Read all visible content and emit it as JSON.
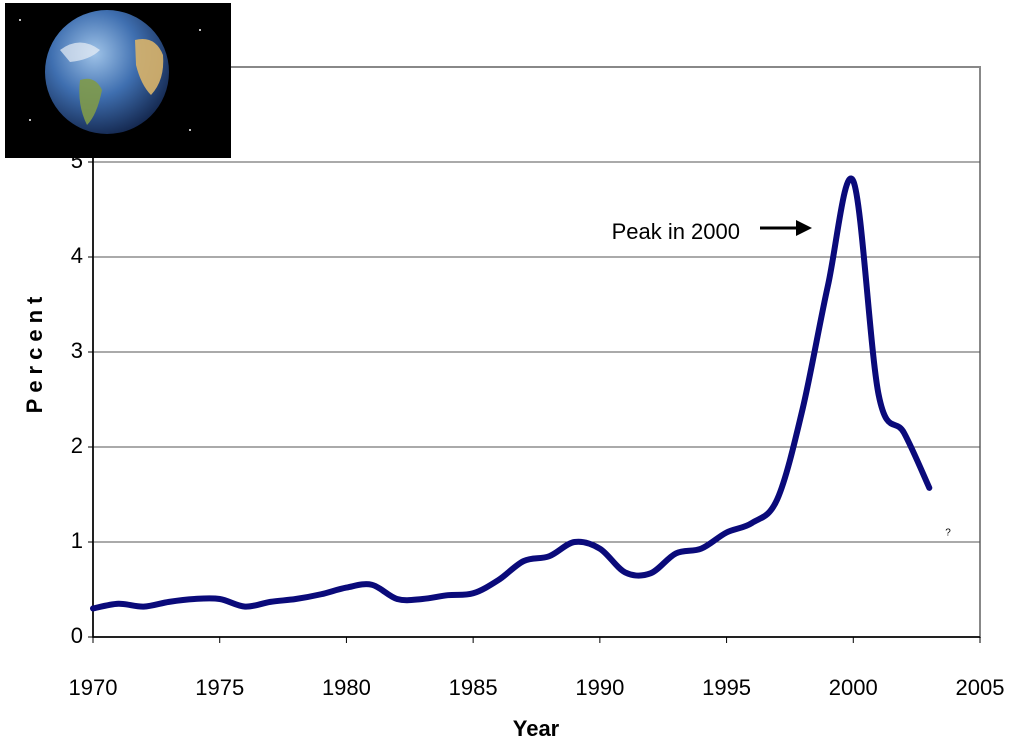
{
  "chart_data": {
    "type": "line",
    "x": [
      1970,
      1971,
      1972,
      1973,
      1974,
      1975,
      1976,
      1977,
      1978,
      1979,
      1980,
      1981,
      1982,
      1983,
      1984,
      1985,
      1986,
      1987,
      1988,
      1989,
      1990,
      1991,
      1992,
      1993,
      1994,
      1995,
      1996,
      1997,
      1998,
      1999,
      2000,
      2001,
      2002,
      2003
    ],
    "series": [
      {
        "color": "#0a0a7a",
        "values": [
          0.3,
          0.35,
          0.32,
          0.37,
          0.4,
          0.4,
          0.32,
          0.37,
          0.4,
          0.45,
          0.52,
          0.55,
          0.4,
          0.4,
          0.44,
          0.46,
          0.6,
          0.8,
          0.85,
          1.0,
          0.93,
          0.68,
          0.67,
          0.88,
          0.93,
          1.1,
          1.2,
          1.45,
          2.4,
          3.7,
          4.8,
          2.55,
          2.15,
          1.57
        ]
      }
    ],
    "xlim": [
      1970,
      2005
    ],
    "xticks": [
      1970,
      1975,
      1980,
      1985,
      1990,
      1995,
      2000,
      2005
    ],
    "ylim": [
      0,
      6
    ],
    "yticks": [
      0,
      1,
      2,
      3,
      4,
      5
    ],
    "grid": true,
    "x_label": "Year",
    "y_label": "Percent",
    "annotations": [
      "Peak in 2000",
      "?"
    ]
  }
}
